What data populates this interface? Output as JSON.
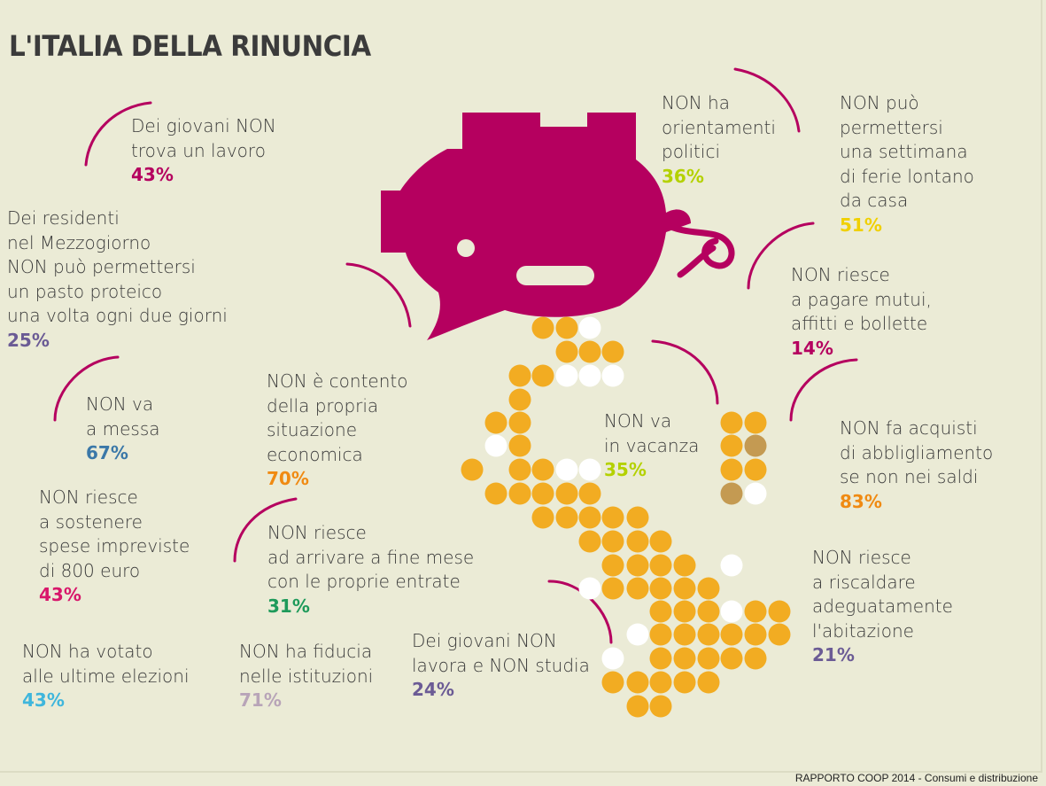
{
  "title": "L'ITALIA DELLA RINUNCIA",
  "source": "RAPPORTO COOP 2014 - Consumi e distribuzione",
  "colors": {
    "background": "#ebebd6",
    "piggy": "#b5005f",
    "coin": "#f2ac22",
    "coin_white": "#ffffff",
    "coin_brown": "#c49a52"
  },
  "stats": {
    "young_no_job": {
      "label": "Dei giovani NON\ntrova un lavoro",
      "value": "43%",
      "color": "#b5005f"
    },
    "south_no_protein": {
      "label": "Dei residenti\nnel Mezzogiorno\nNON può permettersi\nun pasto proteico\nuna volta ogni due giorni",
      "value": "25%",
      "color": "#6b5b95"
    },
    "no_mass": {
      "label": "NON va\na messa",
      "value": "67%",
      "color": "#3b78a8"
    },
    "no_unexpected": {
      "label": "NON riesce\na sostenere\nspese impreviste\ndi 800 euro",
      "value": "43%",
      "color": "#d8176b"
    },
    "no_vote": {
      "label": "NON ha votato\nalle ultime elezioni",
      "value": "43%",
      "color": "#3fb6dc"
    },
    "no_trust": {
      "label": "NON ha fiducia\nnelle istituzioni",
      "value": "71%",
      "color": "#b8a4b8"
    },
    "not_content": {
      "label": "NON è contento\ndella propria\nsituazione\neconomica",
      "value": "70%",
      "color": "#f08a12"
    },
    "month_end": {
      "label": "NON riesce\nad arrivare a fine mese\ncon le proprie entrate",
      "value": "31%",
      "color": "#1e9a5a"
    },
    "neet": {
      "label": "Dei giovani NON\nlavora e NON studia",
      "value": "24%",
      "color": "#6b5b95"
    },
    "no_politics": {
      "label": "NON ha\norientamenti\npolitici",
      "value": "36%",
      "color": "#b4d100"
    },
    "no_holiday_week": {
      "label": "NON può\npermettersi\nuna settimana\ndi ferie lontano\nda casa",
      "value": "51%",
      "color": "#f0d000"
    },
    "no_mortgage": {
      "label": "NON riesce\na pagare mutui,\naffitti e bollette",
      "value": "14%",
      "color": "#b5005f"
    },
    "no_vacation": {
      "label": "NON va\nin vacanza",
      "value": "35%",
      "color": "#b4d100"
    },
    "sales_only": {
      "label": "NON fa acquisti\ndi abbligliamento\nse non nei saldi",
      "value": "83%",
      "color": "#f08a12"
    },
    "no_heating": {
      "label": "NON riesce\n a riscaldare\nadeguatamente\nl'abitazione",
      "value": "21%",
      "color": "#6b5b95"
    }
  }
}
